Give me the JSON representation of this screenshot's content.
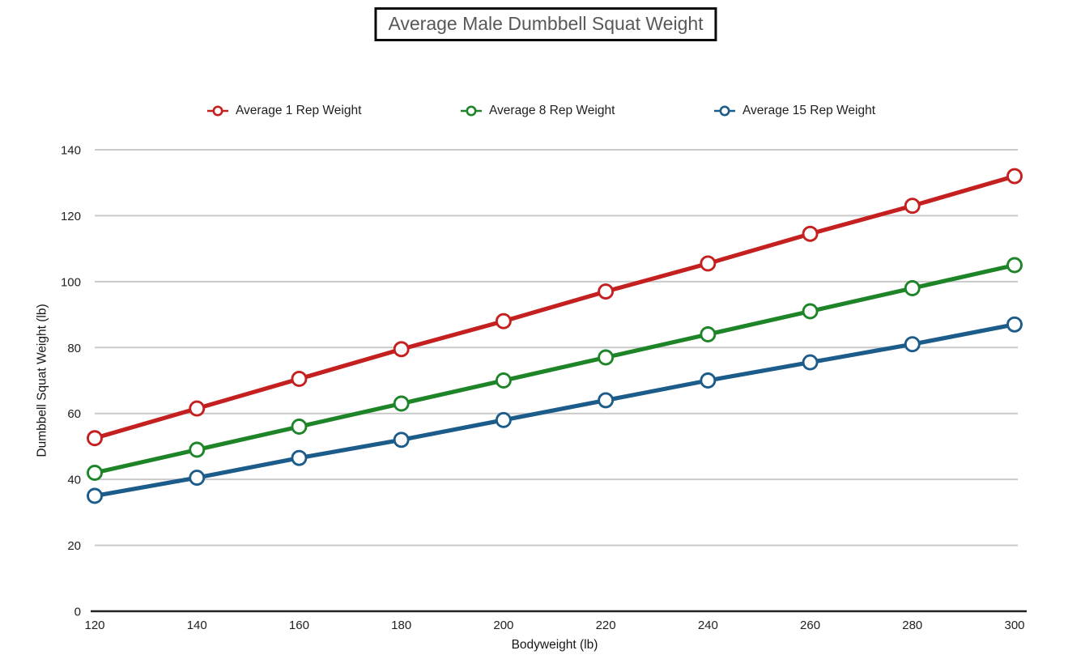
{
  "title": "Average Male Dumbbell Squat Weight",
  "legend": [
    {
      "label": "Average 1 Rep Weight",
      "color": "#C42020"
    },
    {
      "label": "Average 8 Rep Weight",
      "color": "#1E8428"
    },
    {
      "label": "Average 15 Rep Weight",
      "color": "#1C5C8A"
    }
  ],
  "chart_data": {
    "type": "line",
    "title": "Average Male Dumbbell Squat Weight",
    "xlabel": "Bodyweight (lb)",
    "ylabel": "Dumbbell Squat Weight (lb)",
    "x": [
      120,
      140,
      160,
      180,
      200,
      220,
      240,
      260,
      280,
      300
    ],
    "series": [
      {
        "name": "Average 1 Rep Weight",
        "color": "#C42020",
        "values": [
          52.5,
          61.5,
          70.5,
          79.5,
          88,
          97,
          105.5,
          114.5,
          123,
          132
        ]
      },
      {
        "name": "Average 8 Rep Weight",
        "color": "#1E8428",
        "values": [
          42,
          49,
          56,
          63,
          70,
          77,
          84,
          91,
          98,
          105
        ]
      },
      {
        "name": "Average 15 Rep Weight",
        "color": "#1C5C8A",
        "values": [
          35,
          40.5,
          46.5,
          52,
          58,
          64,
          70,
          75.5,
          81,
          87
        ]
      }
    ],
    "xlim": [
      120,
      300
    ],
    "ylim": [
      0,
      140
    ],
    "x_ticks": [
      120,
      140,
      160,
      180,
      200,
      220,
      240,
      260,
      280,
      300
    ],
    "y_ticks": [
      0,
      20,
      40,
      60,
      80,
      100,
      120,
      140
    ],
    "grid": "horizontal",
    "legend_position": "top",
    "marker_style": "open-circle"
  },
  "colors": {
    "grid": "#C9C9C9",
    "baseline": "#222222",
    "tick_text": "#212121",
    "title_text": "#58585a"
  }
}
